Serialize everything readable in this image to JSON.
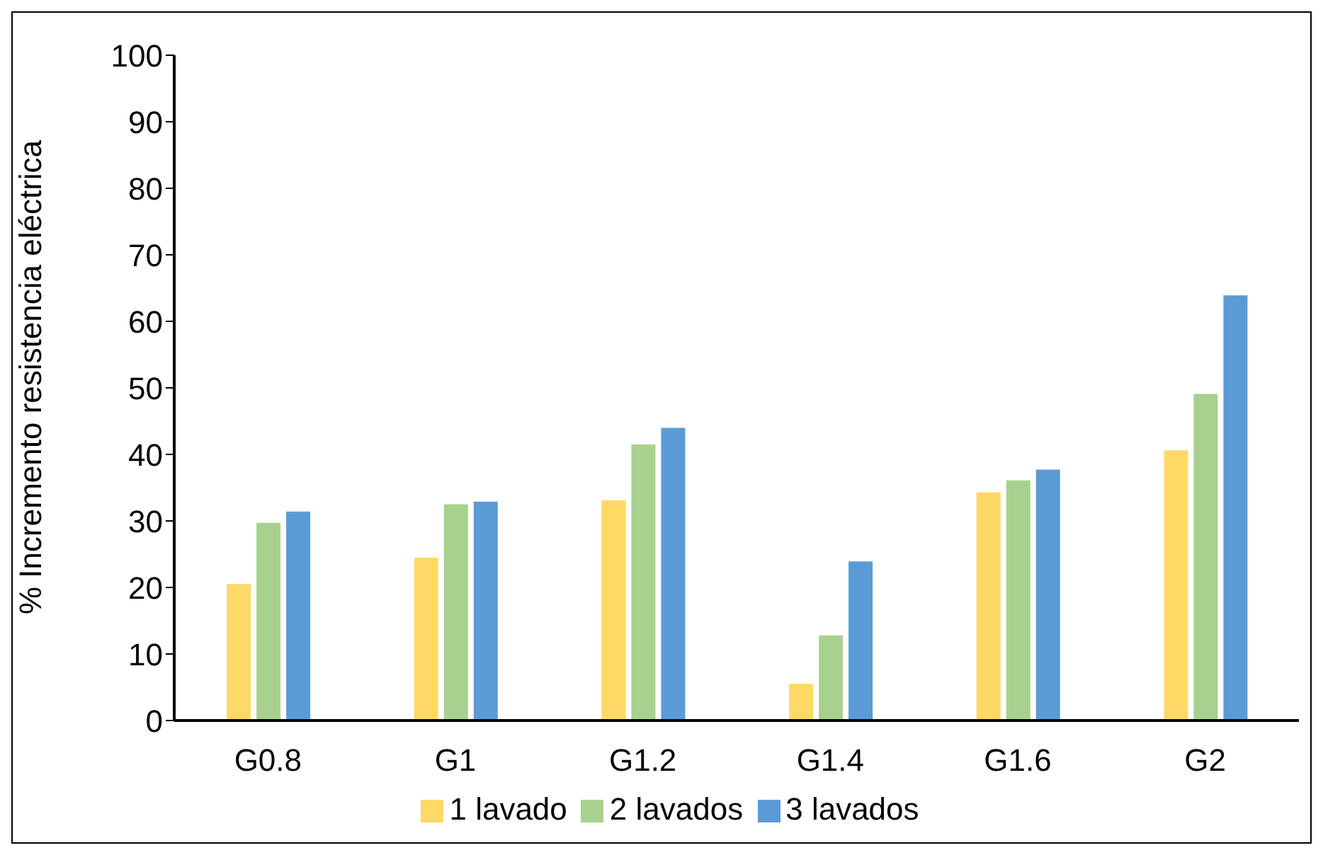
{
  "chart_data": {
    "type": "bar",
    "ylabel": "% Incremento resistencia eléctrica",
    "categories": [
      "G0.8",
      "G1",
      "G1.2",
      "G1.4",
      "G1.6",
      "G2"
    ],
    "series": [
      {
        "name": "1 lavado",
        "color": "#ffd966",
        "values": [
          20.5,
          24.5,
          33.1,
          5.5,
          34.3,
          40.6
        ]
      },
      {
        "name": "2 lavados",
        "color": "#a9d18e",
        "values": [
          29.7,
          32.5,
          41.5,
          12.8,
          36.1,
          49.1
        ]
      },
      {
        "name": "3 lavados",
        "color": "#5b9bd5",
        "values": [
          31.4,
          32.9,
          44.0,
          23.9,
          37.7,
          63.9
        ]
      }
    ],
    "ylim": [
      0,
      100
    ],
    "yticks": [
      0,
      10,
      20,
      30,
      40,
      50,
      60,
      70,
      80,
      90,
      100
    ],
    "grid": false,
    "legend": "bottom"
  }
}
